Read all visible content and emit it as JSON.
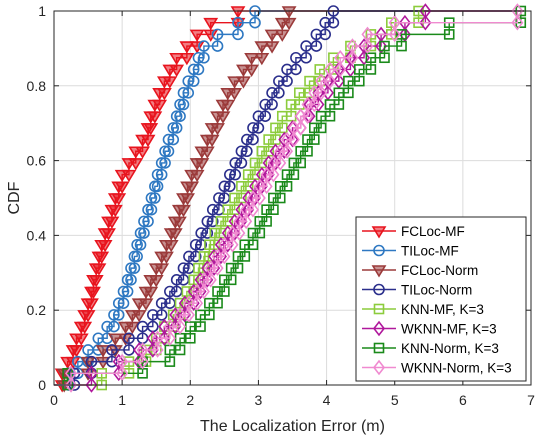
{
  "chart_data": {
    "type": "line",
    "subtype": "empirical-cdf (step) with markers",
    "title": "",
    "xlabel": "The Localization Error (m)",
    "ylabel": "CDF",
    "xlim": [
      0,
      7
    ],
    "ylim": [
      0,
      1
    ],
    "xticks": [
      "0",
      "1",
      "2",
      "3",
      "4",
      "5",
      "6",
      "7"
    ],
    "yticks": [
      "0",
      "0.2",
      "0.4",
      "0.6",
      "0.8",
      "1"
    ],
    "grid": true,
    "legend_position": "bottom-right",
    "series": [
      {
        "name": "FCLoc-MF",
        "color": "#e8141e",
        "marker": "triangle-down",
        "x": [
          0.12,
          0.2,
          0.28,
          0.33,
          0.4,
          0.45,
          0.5,
          0.55,
          0.58,
          0.62,
          0.66,
          0.7,
          0.75,
          0.8,
          0.85,
          0.9,
          0.95,
          1.0,
          1.1,
          1.2,
          1.3,
          1.38,
          1.42,
          1.48,
          1.55,
          1.62,
          1.7,
          1.8,
          1.95,
          2.1,
          2.3,
          2.7
        ]
      },
      {
        "name": "TILoc-MF",
        "color": "#2e78c2",
        "marker": "circle",
        "x": [
          0.22,
          0.35,
          0.5,
          0.65,
          0.78,
          0.88,
          0.95,
          1.02,
          1.08,
          1.13,
          1.18,
          1.22,
          1.27,
          1.32,
          1.38,
          1.43,
          1.48,
          1.52,
          1.58,
          1.63,
          1.68,
          1.75,
          1.8,
          1.85,
          1.9,
          1.97,
          2.05,
          2.12,
          2.2,
          2.4,
          2.7,
          2.95
        ]
      },
      {
        "name": "FCLoc-Norm",
        "color": "#9b3a3a",
        "marker": "triangle-down",
        "x": [
          0.15,
          0.5,
          0.72,
          0.9,
          1.05,
          1.15,
          1.25,
          1.35,
          1.42,
          1.5,
          1.58,
          1.65,
          1.72,
          1.78,
          1.84,
          1.9,
          1.96,
          2.02,
          2.1,
          2.17,
          2.25,
          2.32,
          2.4,
          2.48,
          2.55,
          2.65,
          2.78,
          2.9,
          3.05,
          3.2,
          3.35,
          3.45
        ]
      },
      {
        "name": "TILoc-Norm",
        "color": "#2b2f8c",
        "marker": "circle",
        "x": [
          0.3,
          0.55,
          0.85,
          1.1,
          1.3,
          1.45,
          1.58,
          1.7,
          1.8,
          1.9,
          1.98,
          2.08,
          2.16,
          2.25,
          2.33,
          2.42,
          2.5,
          2.58,
          2.66,
          2.75,
          2.83,
          2.92,
          3.0,
          3.1,
          3.2,
          3.3,
          3.42,
          3.55,
          3.7,
          3.85,
          3.98,
          4.1
        ]
      },
      {
        "name": "KNN-MF, K=3",
        "color": "#8ccc3c",
        "marker": "square",
        "x": [
          0.7,
          1.1,
          1.35,
          1.5,
          1.62,
          1.75,
          1.85,
          1.95,
          2.05,
          2.12,
          2.2,
          2.28,
          2.36,
          2.45,
          2.55,
          2.65,
          2.75,
          2.85,
          2.95,
          3.05,
          3.15,
          3.25,
          3.35,
          3.48,
          3.6,
          3.75,
          3.9,
          4.1,
          4.35,
          4.65,
          4.95,
          5.35
        ]
      },
      {
        "name": "WKNN-MF, K=3",
        "color": "#b0189c",
        "marker": "diamond",
        "x": [
          0.55,
          0.95,
          1.25,
          1.45,
          1.62,
          1.78,
          1.92,
          2.05,
          2.15,
          2.25,
          2.35,
          2.45,
          2.55,
          2.65,
          2.75,
          2.85,
          2.95,
          3.05,
          3.15,
          3.25,
          3.38,
          3.5,
          3.62,
          3.75,
          3.88,
          4.02,
          4.18,
          4.35,
          4.55,
          4.8,
          5.15,
          5.45
        ]
      },
      {
        "name": "KNN-Norm, K=3",
        "color": "#1a8a1a",
        "marker": "square",
        "x": [
          0.2,
          1.3,
          1.7,
          1.85,
          2.0,
          2.15,
          2.28,
          2.4,
          2.5,
          2.6,
          2.7,
          2.8,
          2.92,
          3.02,
          3.12,
          3.22,
          3.32,
          3.42,
          3.52,
          3.62,
          3.72,
          3.82,
          3.92,
          4.05,
          4.18,
          4.32,
          4.48,
          4.65,
          4.85,
          5.1,
          5.8,
          6.85
        ]
      },
      {
        "name": "WKNN-Norm, K=3",
        "color": "#f08ad0",
        "marker": "diamond",
        "x": [
          0.25,
          1.0,
          1.3,
          1.52,
          1.7,
          1.85,
          1.98,
          2.1,
          2.2,
          2.3,
          2.4,
          2.5,
          2.62,
          2.72,
          2.82,
          2.92,
          3.02,
          3.12,
          3.22,
          3.32,
          3.42,
          3.52,
          3.62,
          3.72,
          3.82,
          3.92,
          4.05,
          4.2,
          4.38,
          4.6,
          5.0,
          6.8
        ]
      }
    ]
  }
}
